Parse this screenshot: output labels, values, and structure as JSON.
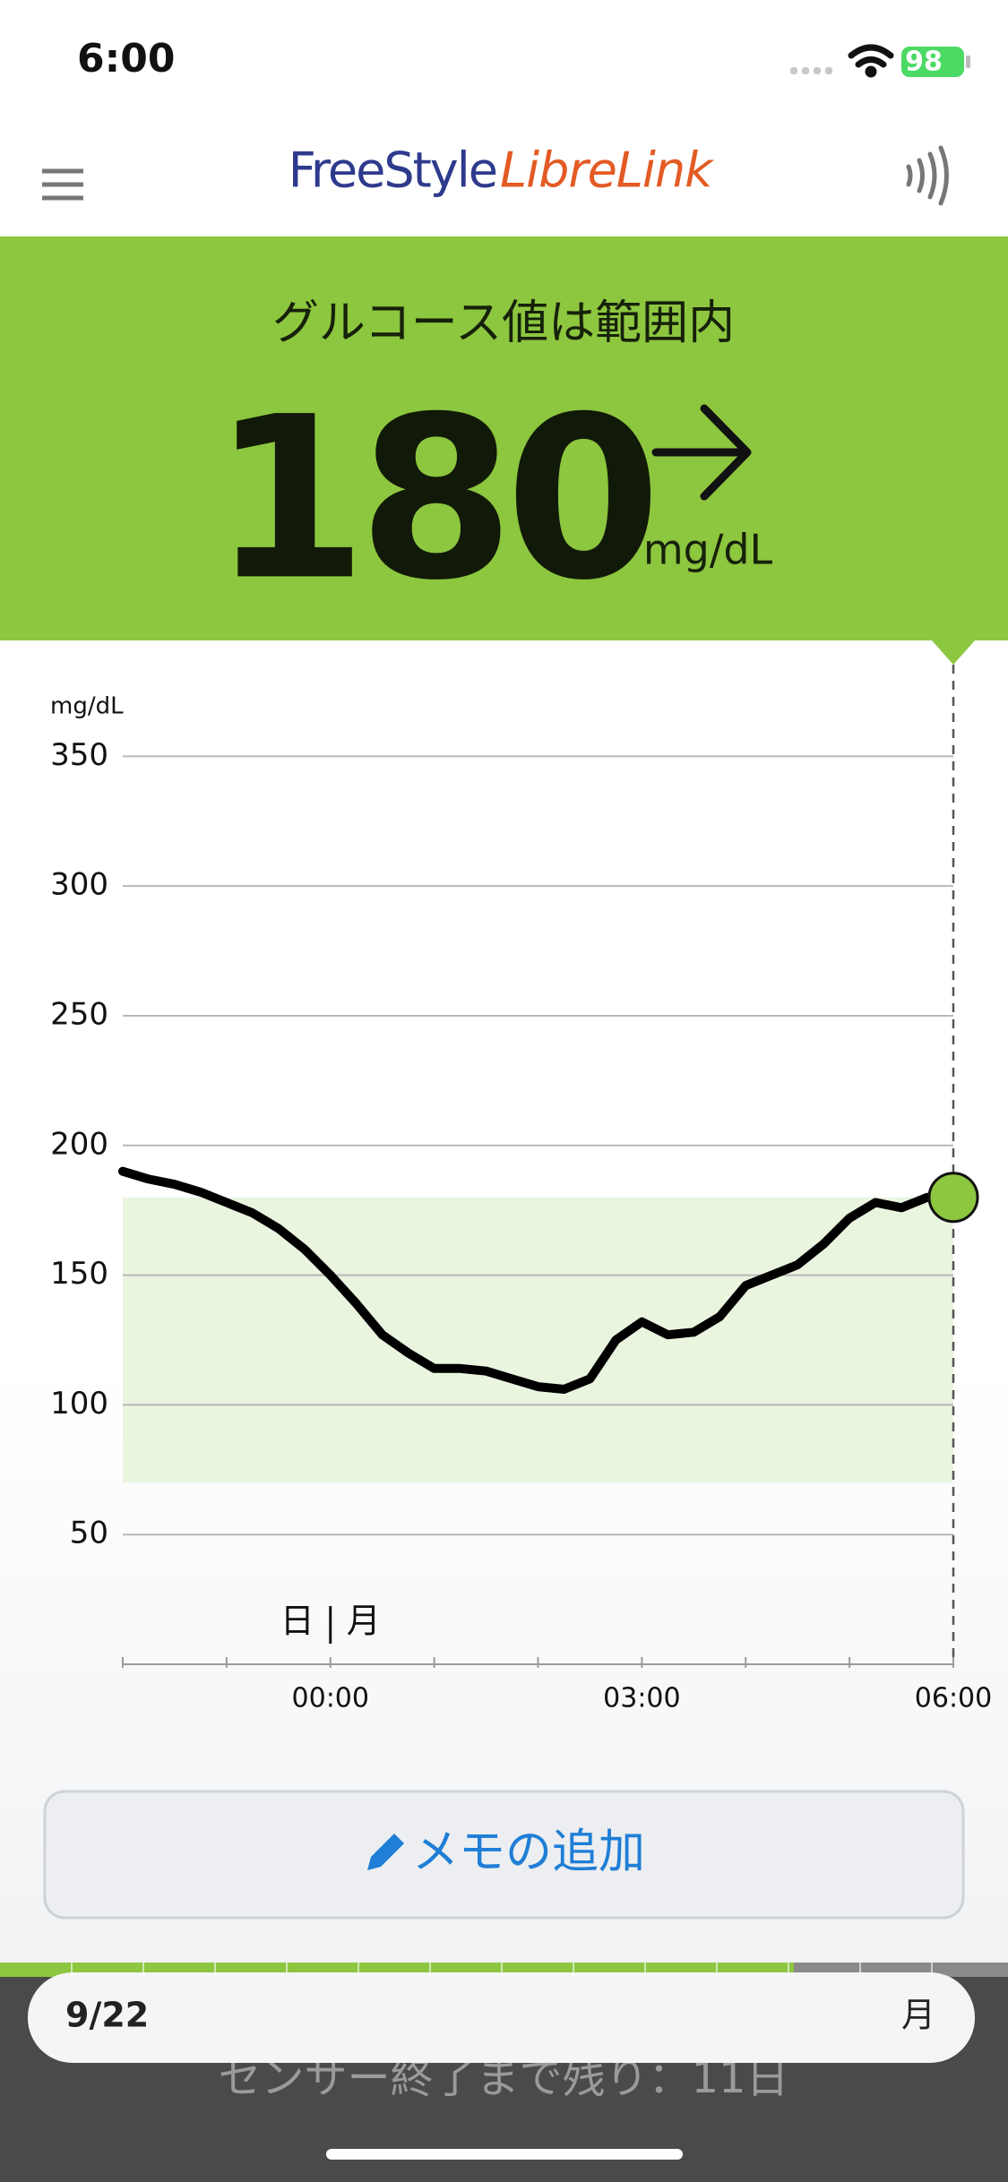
{
  "status": {
    "time": "6:00",
    "battery": "98"
  },
  "header": {
    "logo_freestyle": "FreeStyle",
    "logo_librelink": "LibreLink"
  },
  "banner": {
    "status": "グルコース値は範囲内",
    "value": "180",
    "unit": "mg/dL"
  },
  "chart_data": {
    "type": "line",
    "y_label": "mg/dL",
    "x": [
      -2,
      -1.75,
      -1.5,
      -1.25,
      -1,
      -0.75,
      -0.5,
      -0.25,
      0,
      0.25,
      0.5,
      0.75,
      1,
      1.25,
      1.5,
      1.75,
      2,
      2.25,
      2.5,
      2.75,
      3,
      3.25,
      3.5,
      3.75,
      4,
      4.25,
      4.5,
      4.75,
      5,
      5.25,
      5.5,
      5.75,
      6
    ],
    "series": [
      {
        "name": "glucose",
        "color": "#000000",
        "values": [
          190,
          187,
          185,
          182,
          178,
          174,
          168,
          160,
          150,
          139,
          127,
          120,
          114,
          114,
          113,
          110,
          107,
          106,
          110,
          125,
          132,
          127,
          128,
          134,
          146,
          150,
          154,
          162,
          172,
          178,
          176,
          180,
          180
        ]
      }
    ],
    "current_color": "#8dc63f",
    "target_range": [
      70,
      180
    ],
    "target_color": "#eaf5e0",
    "xlim": [
      -2,
      6
    ],
    "ylim": [
      0,
      385
    ],
    "yticks": [
      50,
      100,
      150,
      200,
      250,
      300,
      350
    ],
    "xticks": [
      {
        "value": 0,
        "label": "00:00"
      },
      {
        "value": 3,
        "label": "03:00"
      },
      {
        "value": 6,
        "label": "06:00"
      }
    ],
    "minor_xticks": [
      -2,
      -1,
      1,
      2,
      4,
      5
    ],
    "grid": true,
    "day_labels": {
      "value": 0,
      "before": "日",
      "after": "月"
    }
  },
  "memo_button": "メモの追加",
  "footer": {
    "date": "9/22",
    "weekday": "月",
    "sensor": "センサー終了まで残り：11日"
  }
}
